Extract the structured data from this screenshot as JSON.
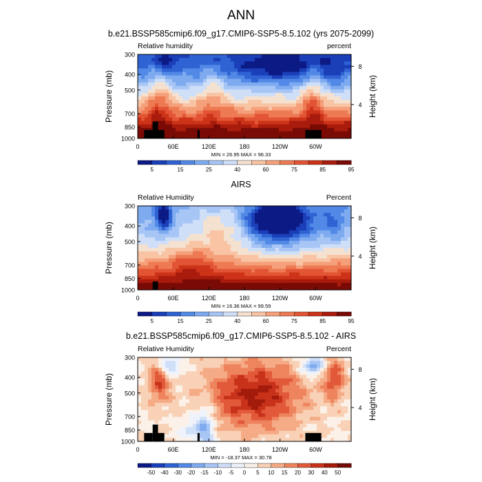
{
  "figure_title": "ANN",
  "colors": {
    "seq": [
      "#0c1a86",
      "#1a3fb8",
      "#2f63d4",
      "#5289e6",
      "#7eaaf0",
      "#a8c6f5",
      "#cfdff8",
      "#f5e1d0",
      "#f8c4a4",
      "#f5a07a",
      "#ee7a53",
      "#e25433",
      "#cc3318",
      "#a91c0d",
      "#7a0a05"
    ],
    "div": [
      "#0c1a86",
      "#1a3fb8",
      "#2f63d4",
      "#5289e6",
      "#7eaaf0",
      "#a8c6f5",
      "#cfdff8",
      "#eef3fb",
      "#fbf1e8",
      "#f8d1b6",
      "#f5ab86",
      "#ee845e",
      "#e2593a",
      "#c8321a",
      "#a31b0b",
      "#740a05"
    ]
  },
  "chart_data": [
    {
      "type": "heatmap",
      "title": "b.e21.BSSP585cmip6.f09_g17.CMIP6-SSP5-8.5.102 (yrs 2075-2099)",
      "left_label": "Relative humidity",
      "right_label": "percent",
      "ylabel": "Pressure (mb)",
      "y2label": "Height (km)",
      "xticks": [
        "0",
        "60E",
        "120E",
        "180",
        "120W",
        "60W"
      ],
      "yticks": [
        "300",
        "400",
        "500",
        "700",
        "850",
        "1000"
      ],
      "y2ticks": [
        "8",
        "4"
      ],
      "stats": "MIN = 26.95  MAX = 96.33",
      "colorbar_labels": [
        "5",
        "15",
        "25",
        "40",
        "60",
        "75",
        "85",
        "95"
      ],
      "scale": "seq"
    },
    {
      "type": "heatmap",
      "title": "AIRS",
      "left_label": "Relative Humidity",
      "right_label": "Percent",
      "ylabel": "Pressure (mb)",
      "y2label": "Height (km)",
      "xticks": [
        "0",
        "60E",
        "120E",
        "180",
        "120W",
        "60W"
      ],
      "yticks": [
        "300",
        "400",
        "500",
        "700",
        "850",
        "1000"
      ],
      "y2ticks": [
        "8",
        "4"
      ],
      "stats": "MIN = 16.36  MAX = 99.59",
      "colorbar_labels": [
        "5",
        "15",
        "25",
        "40",
        "60",
        "75",
        "85",
        "95"
      ],
      "scale": "seq"
    },
    {
      "type": "heatmap",
      "title": "b.e21.BSSP585cmip6.f09_g17.CMIP6-SSP5-8.5.102 - AIRS",
      "left_label": "Relative Humidity",
      "right_label": "Percent",
      "ylabel": "Pressure (mb)",
      "y2label": "Height (km)",
      "xticks": [
        "0",
        "60E",
        "120E",
        "180",
        "120W",
        "60W"
      ],
      "yticks": [
        "300",
        "400",
        "500",
        "700",
        "850",
        "1000"
      ],
      "y2ticks": [
        "8",
        "4"
      ],
      "stats": "MIN = -18.37  MAX = 30.78",
      "colorbar_labels": [
        "-50",
        "-40",
        "-30",
        "-20",
        "-15",
        "-10",
        "-5",
        "0",
        "5",
        "10",
        "15",
        "20",
        "30",
        "40",
        "50"
      ],
      "scale": "div"
    }
  ]
}
